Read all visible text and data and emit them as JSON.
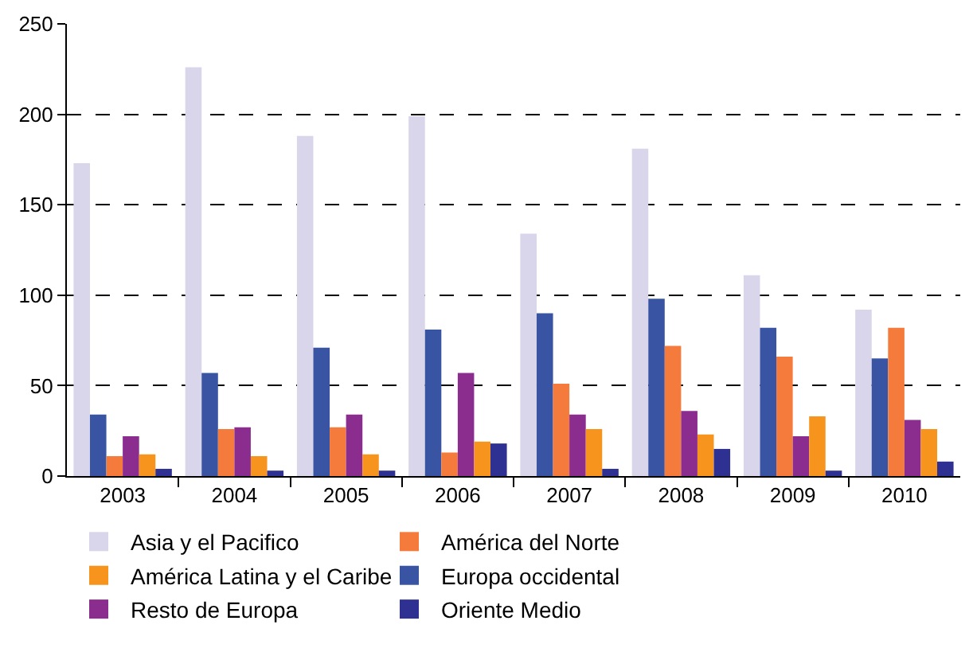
{
  "chart_data": {
    "type": "bar",
    "categories": [
      "2003",
      "2004",
      "2005",
      "2006",
      "2007",
      "2008",
      "2009",
      "2010"
    ],
    "series": [
      {
        "name": "Asia y el Pacifico",
        "color": "#d9d5ea",
        "values": [
          173,
          226,
          188,
          199,
          134,
          181,
          111,
          92
        ]
      },
      {
        "name": "Europa occidental",
        "color": "#3a54a4",
        "values": [
          34,
          57,
          71,
          81,
          90,
          98,
          82,
          65
        ]
      },
      {
        "name": "América del Norte",
        "color": "#f47b3c",
        "values": [
          11,
          26,
          27,
          13,
          51,
          72,
          66,
          82
        ]
      },
      {
        "name": "Resto de Europa",
        "color": "#8b2c8f",
        "values": [
          22,
          27,
          34,
          57,
          34,
          36,
          22,
          31
        ]
      },
      {
        "name": "América Latina y el Caribe",
        "color": "#f7941d",
        "values": [
          12,
          11,
          12,
          19,
          26,
          23,
          33,
          26
        ]
      },
      {
        "name": "Oriente Medio",
        "color": "#2e3192",
        "values": [
          4,
          3,
          3,
          18,
          4,
          15,
          3,
          8
        ]
      }
    ],
    "ylim": [
      0,
      250
    ],
    "yticks": [
      0,
      50,
      100,
      150,
      200,
      250
    ],
    "grid": "y",
    "legend": "bottom"
  }
}
